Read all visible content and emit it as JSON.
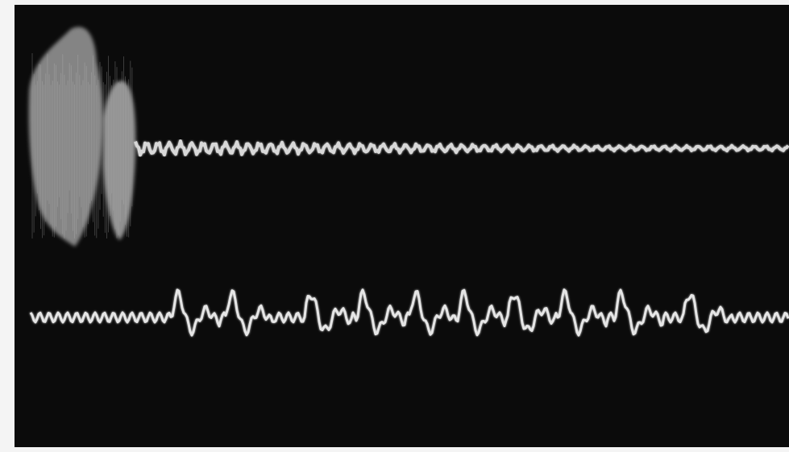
{
  "image": {
    "subject": "oscilloscope-photograph",
    "traces": [
      {
        "name": "upper-trace",
        "color": "#d8d8d8"
      },
      {
        "name": "lower-trace",
        "color": "#e6e6e6"
      }
    ],
    "background_color": "#0b0b0b",
    "frame_color": "#f4f4f4"
  }
}
